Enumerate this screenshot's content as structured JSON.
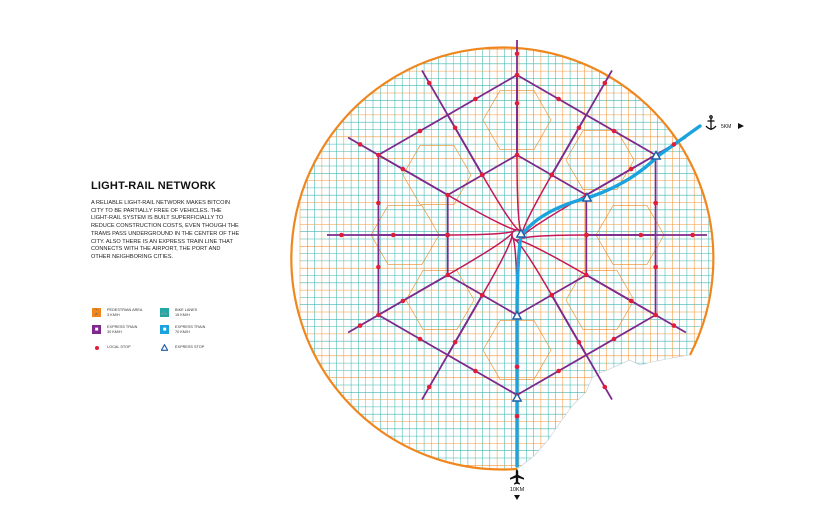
{
  "title": "LIGHT-RAIL NETWORK",
  "description": "A RELIABLE LIGHT-RAIL NETWORK MAKES BITCOIN CITY TO BE PARTIALLY FREE OF VEHICLES. THE LIGHT-RAIL SYSTEM IS BUILT SUPERFICIALLY TO REDUCE CONSTRUCTION COSTS, EVEN THOUGH THE TRAMS PASS UNDERGROUND IN THE CENTER OF THE CITY. ALSO THERE IS AN EXPRESS TRAIN LINE THAT CONNECTS WITH THE AIRPORT, THE PORT AND OTHER NEIGHBORING CITIES.",
  "legend": {
    "pedestrian": {
      "label": "PEDESTRIAN AREA\n3 KM/H",
      "icon": "walking-person-icon",
      "color": "#f0871e"
    },
    "bike": {
      "label": "BIKE LANES\n15 KM/H",
      "icon": "bicycle-icon",
      "color": "#20a9a4"
    },
    "express_train_30": {
      "label": "EXPRESS TRAIN\n30 KM/H",
      "icon": "tram-icon",
      "color": "#7d2a8c"
    },
    "express_train_70": {
      "label": "EXPRESS TRAIN\n70 KM/H",
      "icon": "train-icon",
      "color": "#1aa3dd"
    },
    "local_stop": {
      "label": "LOCAL STOP",
      "icon": "red-dot-icon",
      "color": "#e01e3c"
    },
    "express_stop": {
      "label": "EXPRESS STOP",
      "icon": "triangle-icon",
      "color": "#1b5fa8"
    }
  },
  "map": {
    "port_distance": "5KM",
    "airport_distance": "10KM",
    "port_icon": "anchor-icon",
    "airport_icon": "airplane-icon",
    "colors": {
      "boundary": "#f0871e",
      "grid_teal": "#20a9a4",
      "grid_orange": "#f0871e",
      "rail": "#7d2a8c",
      "rail_center": "#c2185b",
      "express": "#1aa3dd",
      "local_stop": "#e01e3c",
      "express_stop": "#1b5fa8"
    }
  }
}
